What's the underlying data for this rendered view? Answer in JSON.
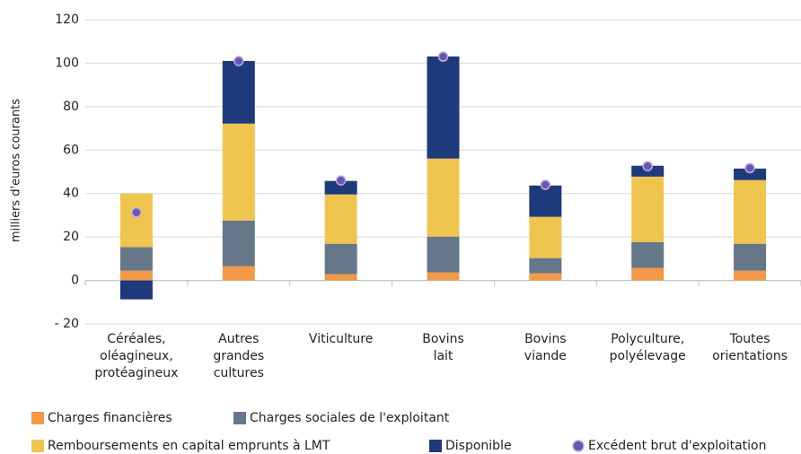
{
  "chart_data": {
    "type": "bar",
    "stacked": true,
    "ylabel": "milliers d'euros courants",
    "categories": [
      "Céréales,\noléagineux,\nprotéagineux",
      "Autres\ngrandes\ncultures",
      "Viticulture",
      "Bovins\nlait",
      "Bovins\nviande",
      "Polyculture,\npolyélevage",
      "Toutes\norientations"
    ],
    "series": [
      {
        "name": "Charges financières",
        "color": "#f2994a",
        "values": [
          4.5,
          6.6,
          2.9,
          3.7,
          3.3,
          5.8,
          4.5
        ]
      },
      {
        "name": "Charges sociales de l'exploitant",
        "color": "#66778a",
        "values": [
          10.8,
          21,
          14,
          16.5,
          7,
          11.9,
          12.4
        ]
      },
      {
        "name": "Remboursements en capital emprunts à LMT",
        "color": "#f0c54f",
        "values": [
          24.7,
          44.6,
          22.7,
          35.9,
          19,
          30.1,
          29.3
        ]
      },
      {
        "name": "Disponible",
        "color": "#1f3a7a",
        "values": [
          -8.7,
          28.8,
          6.2,
          47,
          14.4,
          5,
          5.3
        ]
      }
    ],
    "markers": {
      "name": "Excédent brut d'exploitation",
      "color": "#6b55b3",
      "values": [
        31.3,
        101,
        46,
        103,
        44,
        52.6,
        51.7
      ]
    },
    "ylim": [
      -20,
      120
    ],
    "yticks": [
      {
        "value": -20,
        "label": "- 20"
      },
      0,
      20,
      40,
      60,
      80,
      100,
      120
    ],
    "grid": true,
    "legend": "bottom"
  }
}
